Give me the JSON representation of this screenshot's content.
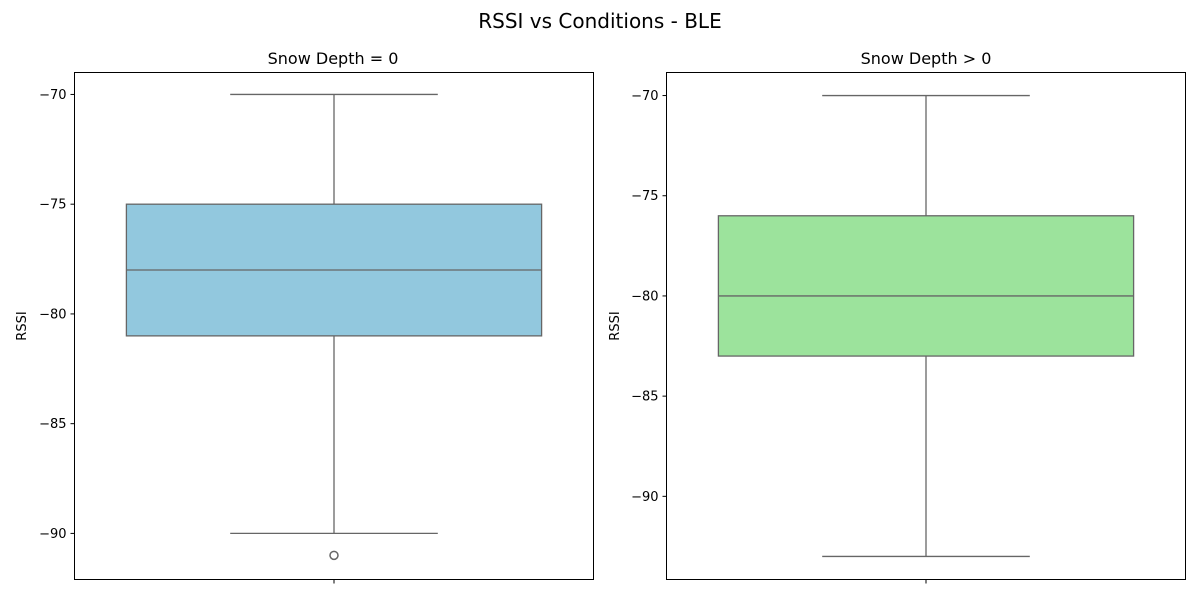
{
  "figure": {
    "title": "RSSI vs Conditions - BLE"
  },
  "chart_data": [
    {
      "type": "box",
      "title": "Snow Depth = 0",
      "xlabel": "",
      "ylabel": "RSSI",
      "ylim": [
        -92.1,
        -69.0
      ],
      "yticks": [
        -70,
        -75,
        -80,
        -85,
        -90
      ],
      "ytick_labels": [
        "−70",
        "−75",
        "−80",
        "−85",
        "−90"
      ],
      "grid": false,
      "color": "#92c8de",
      "stats": {
        "whisker_low": -90,
        "q1": -81,
        "median": -78,
        "q3": -75,
        "whisker_high": -70,
        "outliers": [
          -91
        ]
      }
    },
    {
      "type": "box",
      "title": "Snow Depth > 0",
      "xlabel": "",
      "ylabel": "RSSI",
      "ylim": [
        -94.15,
        -68.85
      ],
      "yticks": [
        -70,
        -75,
        -80,
        -85,
        -90
      ],
      "ytick_labels": [
        "−70",
        "−75",
        "−80",
        "−85",
        "−90"
      ],
      "grid": false,
      "color": "#9ce39c",
      "stats": {
        "whisker_low": -93,
        "q1": -83,
        "median": -80,
        "q3": -76,
        "whisker_high": -70,
        "outliers": []
      }
    }
  ]
}
